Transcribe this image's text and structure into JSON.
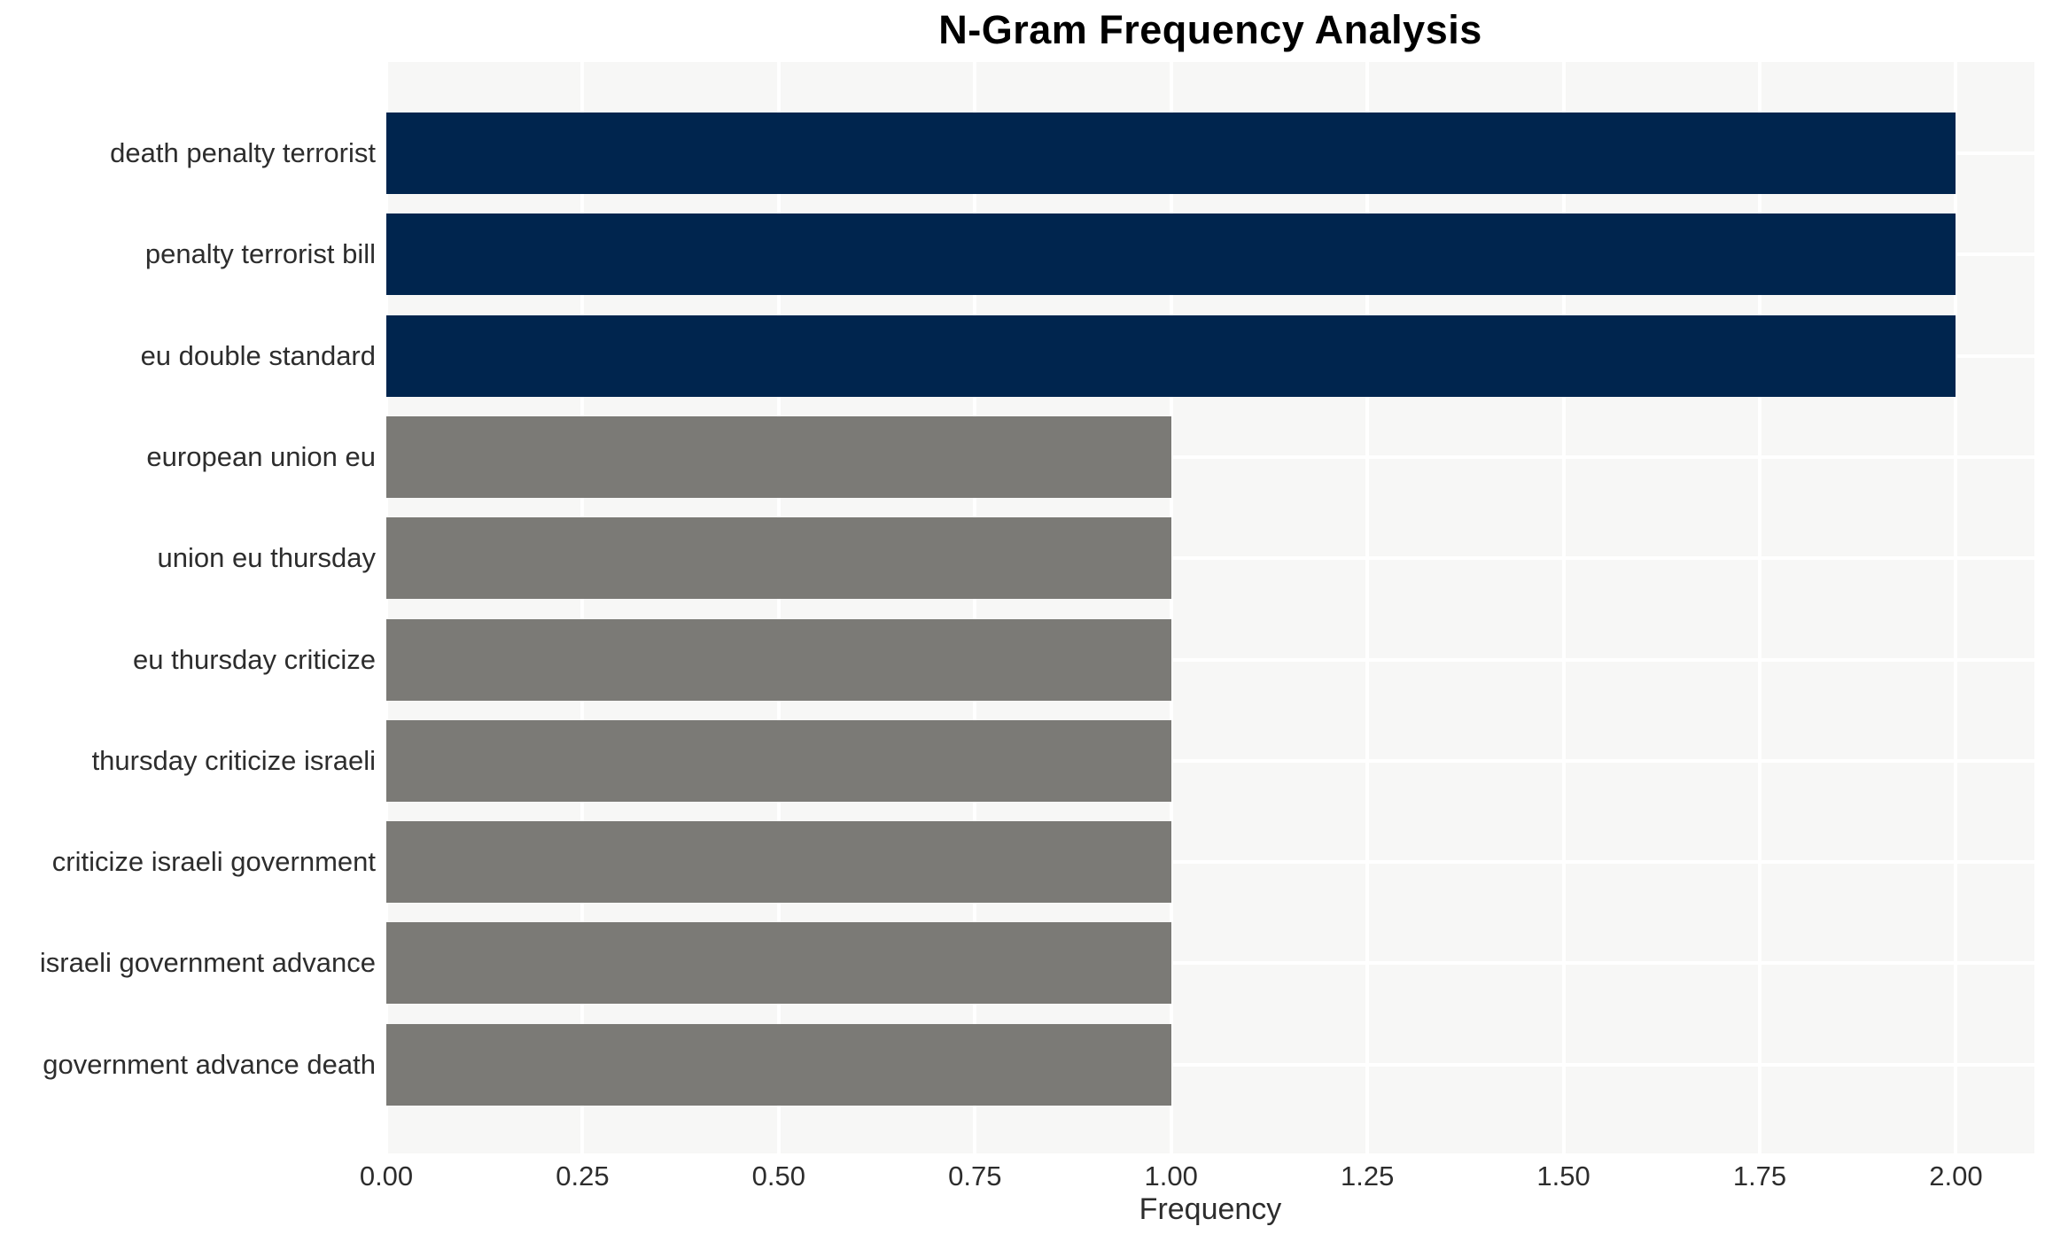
{
  "chart_data": {
    "type": "bar",
    "orientation": "horizontal",
    "title": "N-Gram Frequency Analysis",
    "xlabel": "Frequency",
    "ylabel": "",
    "categories": [
      "death penalty terrorist",
      "penalty terrorist bill",
      "eu double standard",
      "european union eu",
      "union eu thursday",
      "eu thursday criticize",
      "thursday criticize israeli",
      "criticize israeli government",
      "israeli government advance",
      "government advance death"
    ],
    "values": [
      2,
      2,
      2,
      1,
      1,
      1,
      1,
      1,
      1,
      1
    ],
    "bar_colors": [
      "#00254e",
      "#00254e",
      "#00254e",
      "#7b7a76",
      "#7b7a76",
      "#7b7a76",
      "#7b7a76",
      "#7b7a76",
      "#7b7a76",
      "#7b7a76"
    ],
    "xticks": [
      "0.00",
      "0.25",
      "0.50",
      "0.75",
      "1.00",
      "1.25",
      "1.50",
      "1.75",
      "2.00"
    ],
    "xlim": [
      0,
      2.1
    ],
    "grid": true,
    "legend": false
  },
  "style": {
    "plot_background": "#f7f7f6",
    "grid_color": "#ffffff",
    "bar_color_high": "#00254e",
    "bar_color_low": "#7b7a76",
    "text_color": "#2d2d2d",
    "title_color": "#000000"
  }
}
